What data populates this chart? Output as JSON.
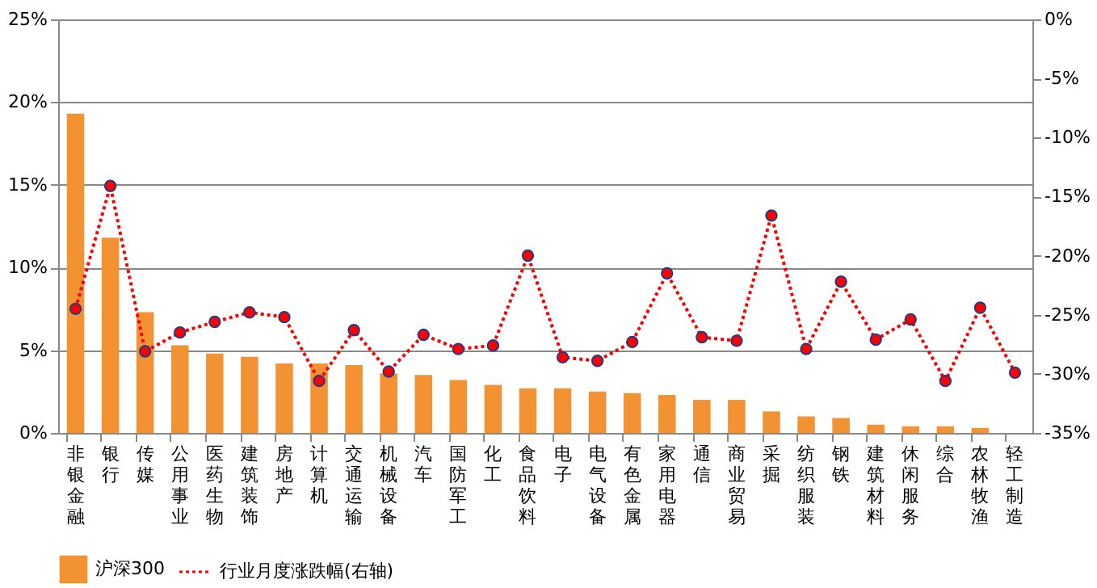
{
  "chart_data": {
    "type": "bar",
    "categories": [
      "非银金融",
      "银行",
      "传媒",
      "公用事业",
      "医药生物",
      "建筑装饰",
      "房地产",
      "计算机",
      "交通运输",
      "机械设备",
      "汽车",
      "国防军工",
      "化工",
      "食品饮料",
      "电子",
      "电气设备",
      "有色金属",
      "家用电器",
      "通信",
      "商业贸易",
      "采掘",
      "纺织服装",
      "钢铁",
      "建筑材料",
      "休闲服务",
      "综合",
      "农林牧渔",
      "轻工制造"
    ],
    "series": [
      {
        "name": "沪深300",
        "color": "#f39233",
        "values": [
          19.3,
          11.8,
          7.3,
          5.3,
          4.8,
          4.6,
          4.2,
          4.2,
          4.1,
          3.6,
          3.5,
          3.2,
          2.9,
          2.7,
          2.7,
          2.5,
          2.4,
          2.3,
          2.0,
          2.0,
          1.3,
          1.0,
          0.9,
          0.5,
          0.4,
          0.4,
          0.3,
          null
        ]
      },
      {
        "name": "行业月度涨跌幅(右轴)",
        "type": "line",
        "axis": "y2",
        "color": "#ff0000",
        "marker": "circle",
        "line_style": "dotted",
        "values": [
          -24.5,
          -14.1,
          -28.1,
          -26.5,
          -25.6,
          -24.8,
          -25.2,
          -30.6,
          -26.3,
          -29.8,
          -26.7,
          -27.9,
          -27.6,
          -20.0,
          -28.6,
          -28.9,
          -27.3,
          -21.5,
          -26.9,
          -27.2,
          -16.6,
          -27.9,
          -22.2,
          -27.1,
          -25.4,
          -30.6,
          -24.4,
          -29.9
        ]
      }
    ],
    "ylim": [
      0,
      25
    ],
    "yticks": [
      {
        "value": 0,
        "label": "0%"
      },
      {
        "value": 5,
        "label": "5%"
      },
      {
        "value": 10,
        "label": "10%"
      },
      {
        "value": 15,
        "label": "15%"
      },
      {
        "value": 20,
        "label": "20%"
      },
      {
        "value": 25,
        "label": "25%"
      }
    ],
    "y2lim": [
      -35,
      0
    ],
    "y2ticks": [
      {
        "value": -35,
        "label": "-35%"
      },
      {
        "value": -30,
        "label": "-30%"
      },
      {
        "value": -25,
        "label": "-25%"
      },
      {
        "value": -20,
        "label": "-20%"
      },
      {
        "value": -15,
        "label": "-15%"
      },
      {
        "value": -10,
        "label": "-10%"
      },
      {
        "value": -5,
        "label": "-5%"
      },
      {
        "value": 0,
        "label": "0%"
      }
    ],
    "grid": "y",
    "legend": "bottom"
  }
}
